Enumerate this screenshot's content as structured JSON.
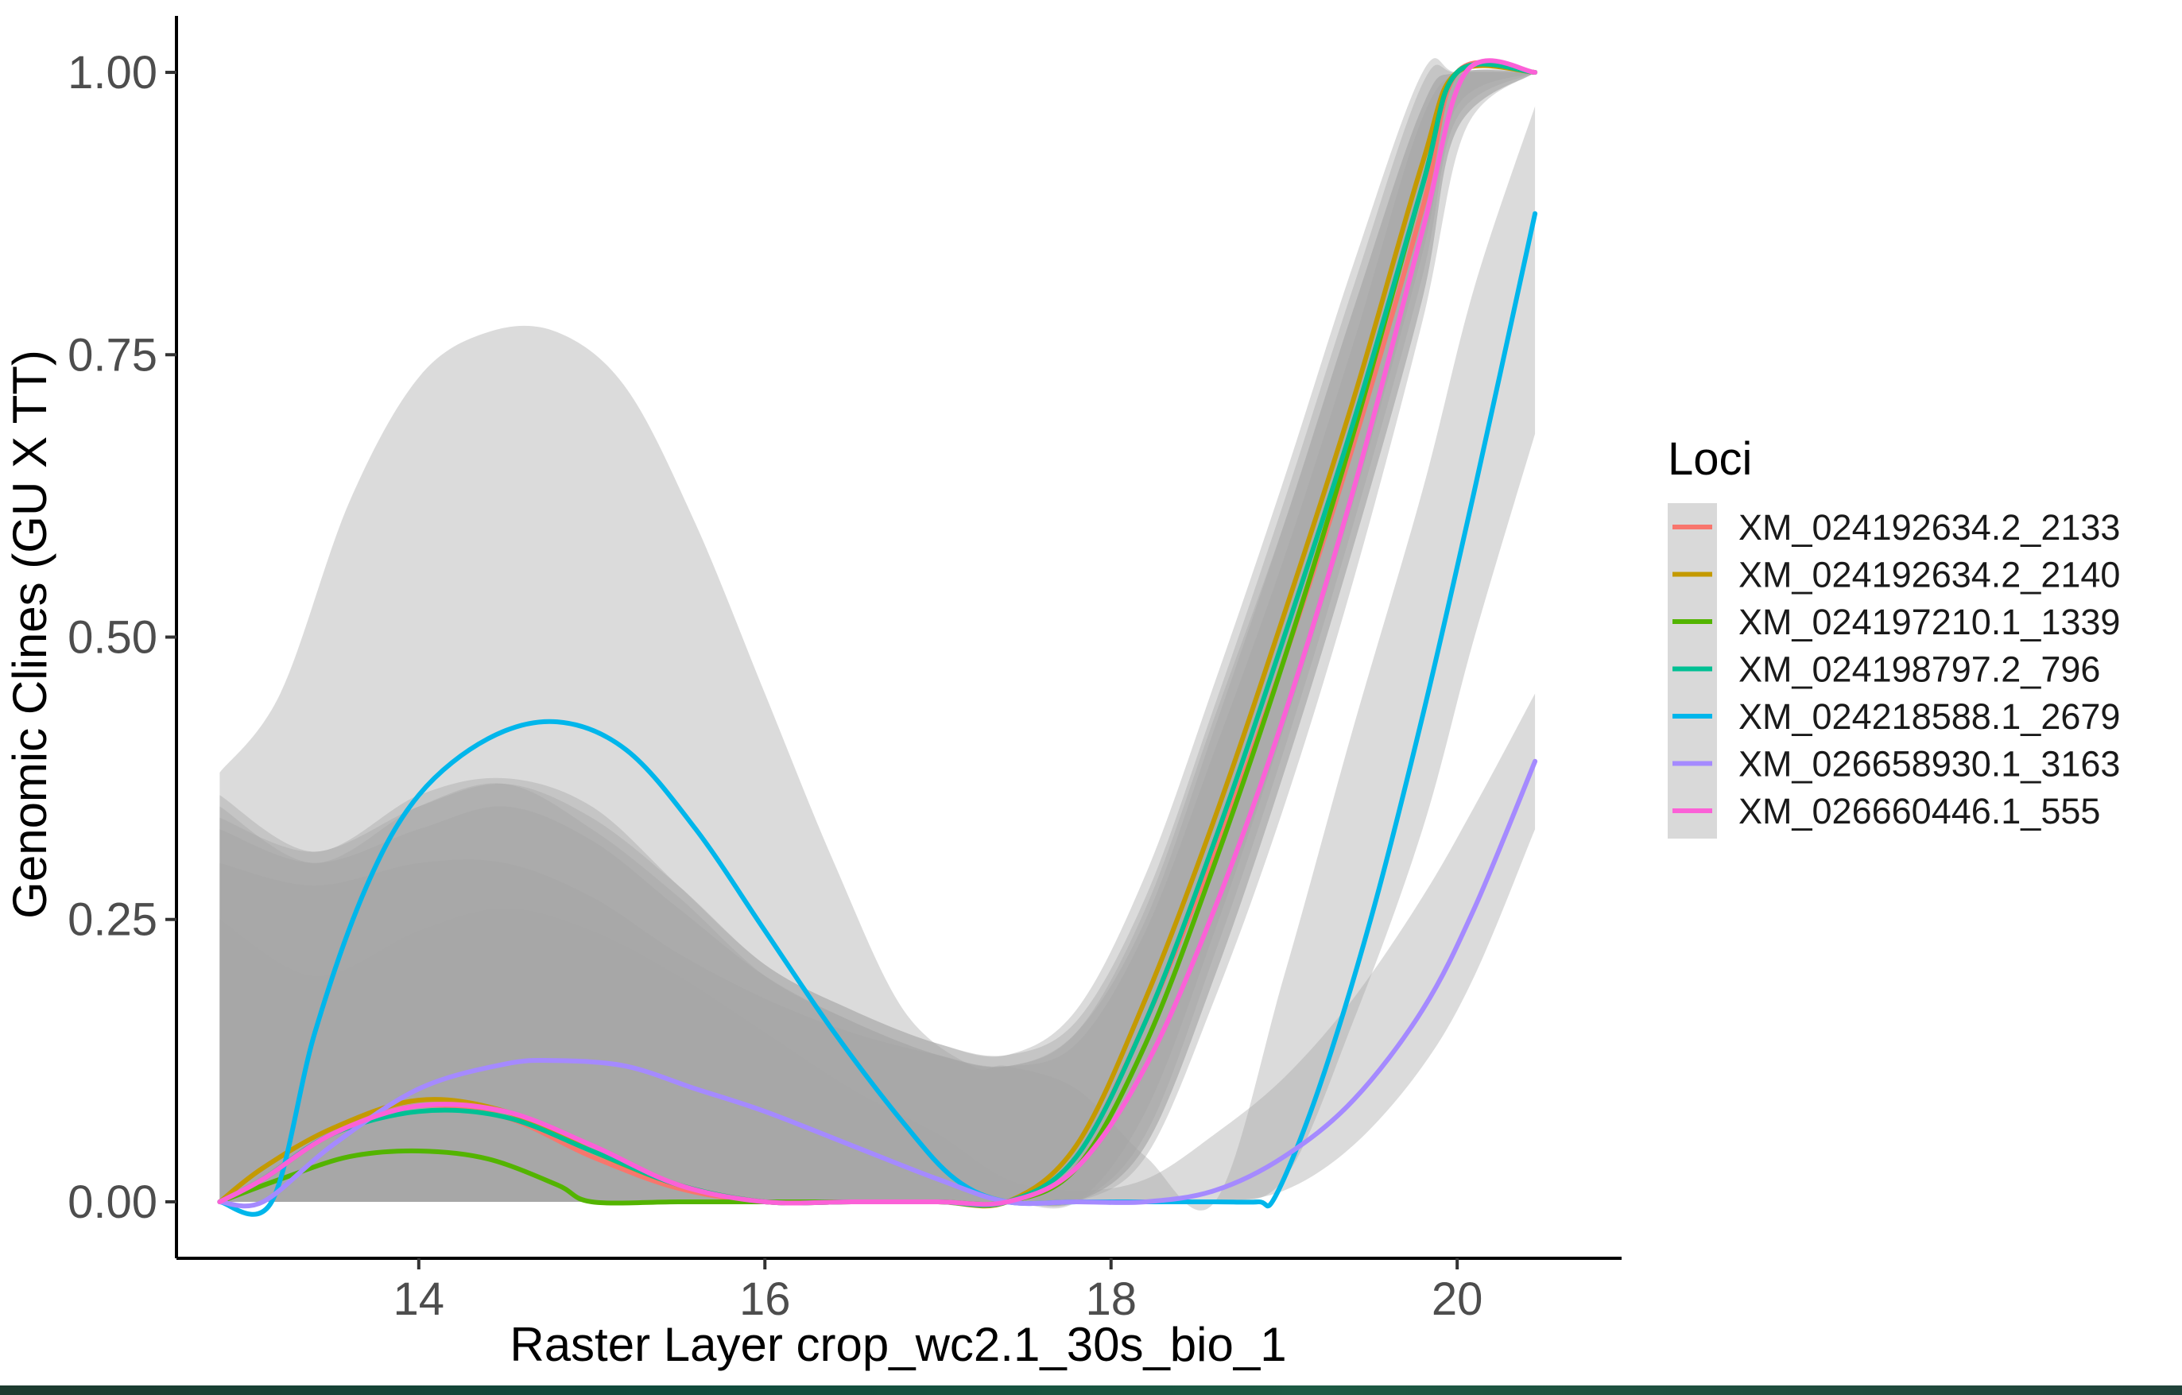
{
  "chart_data": {
    "type": "line",
    "xlabel": "Raster Layer crop_wc2.1_30s_bio_1",
    "ylabel": "Genomic Clines (GU X TT)",
    "xlim": [
      12.6,
      20.95
    ],
    "ylim": [
      -0.05,
      1.05
    ],
    "x_ticks": [
      14,
      16,
      18,
      20
    ],
    "x_tick_labels": [
      "14",
      "16",
      "18",
      "20"
    ],
    "y_ticks": [
      0,
      0.25,
      0.5,
      0.75,
      1.0
    ],
    "y_tick_labels": [
      "0.00",
      "0.25",
      "0.50",
      "0.75",
      "1.00"
    ],
    "grid": false,
    "legend": {
      "title": "Loci",
      "position": "right"
    },
    "confidence_band_color": "#a6a6a6",
    "series": [
      {
        "name": "XM_024192634.2_2133",
        "color": "#F8766D",
        "x": [
          12.85,
          13.1,
          13.5,
          14.0,
          14.5,
          15.0,
          15.5,
          16.0,
          16.5,
          17.0,
          17.4,
          17.8,
          18.2,
          18.6,
          19.0,
          19.4,
          19.8,
          20.0,
          20.45
        ],
        "y": [
          0,
          0.02,
          0.06,
          0.085,
          0.075,
          0.04,
          0.012,
          0,
          0,
          0,
          0,
          0.04,
          0.16,
          0.31,
          0.48,
          0.67,
          0.88,
          1.0,
          1.0
        ]
      },
      {
        "name": "XM_024192634.2_2140",
        "color": "#C49A00",
        "x": [
          12.85,
          13.1,
          13.5,
          14.0,
          14.5,
          15.0,
          15.5,
          16.0,
          16.5,
          17.0,
          17.4,
          17.8,
          18.2,
          18.6,
          19.0,
          19.4,
          19.8,
          20.0,
          20.45
        ],
        "y": [
          0,
          0.03,
          0.065,
          0.09,
          0.08,
          0.045,
          0.015,
          0,
          0,
          0,
          0,
          0.05,
          0.18,
          0.34,
          0.52,
          0.71,
          0.92,
          1.0,
          1.0
        ]
      },
      {
        "name": "XM_024197210.1_1339",
        "color": "#53B400",
        "x": [
          12.85,
          13.2,
          13.6,
          14.0,
          14.4,
          14.8,
          15.0,
          15.5,
          16.0,
          16.5,
          17.0,
          17.4,
          17.8,
          18.2,
          18.6,
          19.0,
          19.4,
          19.8,
          20.0,
          20.45
        ],
        "y": [
          0,
          0.02,
          0.04,
          0.045,
          0.038,
          0.015,
          0,
          0,
          0,
          0,
          0,
          0,
          0.03,
          0.14,
          0.3,
          0.48,
          0.68,
          0.9,
          1.0,
          1.0
        ]
      },
      {
        "name": "XM_024198797.2_796",
        "color": "#00C094",
        "x": [
          12.85,
          13.1,
          13.5,
          14.0,
          14.5,
          15.0,
          15.5,
          16.0,
          16.5,
          17.0,
          17.4,
          17.8,
          18.2,
          18.6,
          19.0,
          19.4,
          19.8,
          20.0,
          20.45
        ],
        "y": [
          0,
          0.02,
          0.06,
          0.08,
          0.075,
          0.045,
          0.015,
          0,
          0,
          0,
          0,
          0.04,
          0.16,
          0.32,
          0.5,
          0.69,
          0.9,
          1.0,
          1.0
        ]
      },
      {
        "name": "XM_024218588.1_2679",
        "color": "#00B6EB",
        "x": [
          12.85,
          13.15,
          13.4,
          13.7,
          14.0,
          14.4,
          14.8,
          15.2,
          15.6,
          16.0,
          16.4,
          16.8,
          17.1,
          17.4,
          17.8,
          18.2,
          18.6,
          18.85,
          18.95,
          19.2,
          19.5,
          19.8,
          20.1,
          20.45
        ],
        "y": [
          0,
          0,
          0.15,
          0.28,
          0.36,
          0.41,
          0.425,
          0.4,
          0.33,
          0.24,
          0.15,
          0.07,
          0.02,
          0,
          0,
          0,
          0,
          0,
          0.005,
          0.1,
          0.25,
          0.43,
          0.63,
          0.875
        ]
      },
      {
        "name": "XM_026658930.1_3163",
        "color": "#A58AFF",
        "x": [
          12.85,
          13.1,
          13.5,
          14.0,
          14.5,
          14.8,
          15.2,
          15.6,
          16.0,
          16.5,
          17.0,
          17.4,
          17.8,
          18.2,
          18.6,
          19.0,
          19.4,
          19.8,
          20.1,
          20.45
        ],
        "y": [
          0,
          0,
          0.05,
          0.1,
          0.122,
          0.125,
          0.12,
          0.1,
          0.08,
          0.05,
          0.02,
          0,
          0,
          0,
          0.01,
          0.04,
          0.09,
          0.17,
          0.26,
          0.39
        ]
      },
      {
        "name": "XM_026660446.1_555",
        "color": "#FB61D7",
        "x": [
          12.85,
          13.1,
          13.5,
          14.0,
          14.5,
          15.0,
          15.5,
          16.0,
          16.5,
          17.0,
          17.4,
          17.8,
          18.2,
          18.6,
          19.0,
          19.4,
          19.8,
          20.05,
          20.45
        ],
        "y": [
          0,
          0.02,
          0.06,
          0.085,
          0.08,
          0.05,
          0.015,
          0,
          0,
          0,
          0,
          0.03,
          0.12,
          0.26,
          0.43,
          0.63,
          0.86,
          1.0,
          1.0
        ]
      }
    ],
    "bands": [
      {
        "series": "XM_024192634.2_2133",
        "x": [
          12.85,
          13.4,
          14.0,
          14.5,
          15.0,
          15.5,
          16.0,
          16.5,
          17.0,
          17.4,
          17.8,
          18.2,
          18.6,
          19.0,
          19.4,
          19.8,
          20.0,
          20.45
        ],
        "lower": [
          0,
          0,
          0,
          0,
          0,
          0,
          0,
          0,
          0,
          0,
          0,
          0.05,
          0.2,
          0.38,
          0.58,
          0.8,
          0.95,
          1.0
        ],
        "upper": [
          0.33,
          0.3,
          0.33,
          0.35,
          0.32,
          0.26,
          0.2,
          0.16,
          0.13,
          0.12,
          0.15,
          0.26,
          0.43,
          0.6,
          0.79,
          0.97,
          1.0,
          1.0
        ]
      },
      {
        "series": "XM_024192634.2_2140",
        "x": [
          12.85,
          13.4,
          14.0,
          14.5,
          15.0,
          15.5,
          16.0,
          16.5,
          17.0,
          17.4,
          17.8,
          18.2,
          18.6,
          19.0,
          19.4,
          19.8,
          20.0,
          20.45
        ],
        "lower": [
          0,
          0,
          0,
          0,
          0,
          0,
          0,
          0,
          0,
          0,
          0,
          0.08,
          0.24,
          0.42,
          0.62,
          0.84,
          0.97,
          1.0
        ],
        "upper": [
          0.34,
          0.31,
          0.35,
          0.37,
          0.34,
          0.28,
          0.21,
          0.17,
          0.14,
          0.13,
          0.17,
          0.29,
          0.46,
          0.64,
          0.83,
          1.0,
          1.0,
          1.0
        ]
      },
      {
        "series": "XM_024197210.1_1339",
        "x": [
          12.85,
          13.4,
          14.0,
          14.5,
          15.0,
          15.5,
          16.0,
          16.5,
          17.0,
          17.4,
          17.8,
          18.2,
          18.6,
          19.0,
          19.4,
          19.8,
          20.0,
          20.45
        ],
        "lower": [
          0,
          0,
          0,
          0,
          0,
          0,
          0,
          0,
          0,
          0,
          0,
          0.05,
          0.2,
          0.38,
          0.58,
          0.8,
          0.95,
          1.0
        ],
        "upper": [
          0.3,
          0.28,
          0.3,
          0.3,
          0.27,
          0.22,
          0.18,
          0.15,
          0.13,
          0.12,
          0.15,
          0.25,
          0.42,
          0.6,
          0.79,
          0.97,
          1.0,
          1.0
        ]
      },
      {
        "series": "XM_024198797.2_796",
        "x": [
          12.85,
          13.4,
          14.0,
          14.5,
          15.0,
          15.5,
          16.0,
          16.5,
          17.0,
          17.4,
          17.8,
          18.2,
          18.6,
          19.0,
          19.4,
          19.8,
          20.0,
          20.45
        ],
        "lower": [
          0,
          0,
          0,
          0,
          0,
          0,
          0,
          0,
          0,
          0,
          0,
          0.06,
          0.22,
          0.4,
          0.6,
          0.82,
          0.96,
          1.0
        ],
        "upper": [
          0.36,
          0.31,
          0.36,
          0.375,
          0.35,
          0.28,
          0.21,
          0.17,
          0.14,
          0.13,
          0.16,
          0.27,
          0.44,
          0.62,
          0.81,
          0.99,
          1.0,
          1.0
        ]
      },
      {
        "series": "XM_024218588.1_2679",
        "x": [
          12.85,
          13.2,
          13.6,
          14.0,
          14.4,
          14.8,
          15.2,
          15.6,
          16.0,
          16.4,
          16.8,
          17.2,
          17.4,
          17.8,
          18.2,
          18.6,
          19.0,
          19.4,
          19.8,
          20.1,
          20.45
        ],
        "lower": [
          0,
          0,
          0,
          0,
          0,
          0,
          0,
          0,
          0,
          0,
          0,
          0,
          0,
          0,
          0,
          0,
          0.02,
          0.16,
          0.33,
          0.5,
          0.68
        ],
        "upper": [
          0.38,
          0.45,
          0.62,
          0.73,
          0.77,
          0.77,
          0.72,
          0.6,
          0.45,
          0.3,
          0.17,
          0.12,
          0.12,
          0.1,
          0.04,
          0.0,
          0.2,
          0.42,
          0.63,
          0.81,
          0.97
        ]
      },
      {
        "series": "XM_026658930.1_3163",
        "x": [
          12.85,
          13.4,
          14.0,
          14.5,
          15.0,
          15.5,
          16.0,
          16.5,
          17.0,
          17.4,
          17.8,
          18.2,
          18.6,
          19.0,
          19.4,
          19.8,
          20.1,
          20.45
        ],
        "lower": [
          0,
          0,
          0,
          0,
          0,
          0,
          0,
          0,
          0,
          0,
          0,
          0,
          0,
          0.01,
          0.05,
          0.12,
          0.2,
          0.33
        ],
        "upper": [
          0.25,
          0.2,
          0.24,
          0.26,
          0.24,
          0.2,
          0.15,
          0.1,
          0.06,
          0.02,
          0.01,
          0.02,
          0.06,
          0.11,
          0.18,
          0.27,
          0.35,
          0.45
        ]
      },
      {
        "series": "XM_026660446.1_555",
        "x": [
          12.85,
          13.4,
          14.0,
          14.5,
          15.0,
          15.5,
          16.0,
          16.5,
          17.0,
          17.4,
          17.8,
          18.2,
          18.6,
          19.0,
          19.4,
          19.8,
          20.05,
          20.45
        ],
        "lower": [
          0,
          0,
          0,
          0,
          0,
          0,
          0,
          0,
          0,
          0,
          0,
          0.04,
          0.18,
          0.35,
          0.55,
          0.78,
          0.95,
          1.0
        ],
        "upper": [
          0.35,
          0.3,
          0.35,
          0.37,
          0.33,
          0.27,
          0.2,
          0.16,
          0.13,
          0.12,
          0.14,
          0.24,
          0.4,
          0.57,
          0.76,
          0.96,
          1.0,
          1.0
        ]
      }
    ]
  }
}
